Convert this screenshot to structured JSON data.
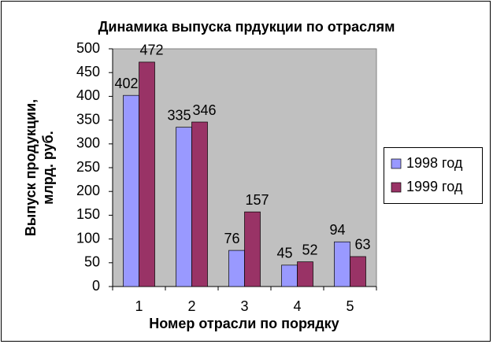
{
  "chart_data": {
    "type": "bar",
    "title": "Динамика выпуска прдукции по отраслям",
    "y_label": [
      "Выпуск продукции,",
      "млрд. руб."
    ],
    "x_label": "Номер отрасли по порядку",
    "categories": [
      "1",
      "2",
      "3",
      "4",
      "5"
    ],
    "series": [
      {
        "name": "1998 год",
        "color": "#9999ff",
        "values": [
          402,
          335,
          76,
          45,
          94
        ]
      },
      {
        "name": "1999 год",
        "color": "#993366",
        "values": [
          472,
          346,
          157,
          52,
          63
        ]
      }
    ],
    "ylim": [
      0,
      500
    ],
    "yticks": [
      0,
      50,
      100,
      150,
      200,
      250,
      300,
      350,
      400,
      450,
      500
    ],
    "grid": false,
    "legend": "right",
    "plot_background": "#c0c0c0"
  }
}
